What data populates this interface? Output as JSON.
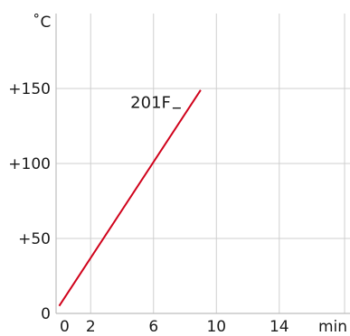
{
  "chart_data": {
    "type": "line",
    "y_unit": "˚C",
    "x_unit": "min",
    "x_ticks": [
      0,
      2,
      6,
      10,
      14
    ],
    "x_tick_labels": [
      "0",
      "2",
      "6",
      "10",
      "14"
    ],
    "y_ticks": [
      0,
      50,
      100,
      150
    ],
    "y_tick_labels": [
      "0",
      "+50",
      "+100",
      "+150"
    ],
    "xlim": [
      -0.2,
      18.5
    ],
    "ylim": [
      0,
      200
    ],
    "grid": true,
    "series": [
      {
        "name": "201F",
        "color": "#d0021b",
        "x": [
          0,
          9
        ],
        "y": [
          5,
          149
        ]
      }
    ]
  }
}
